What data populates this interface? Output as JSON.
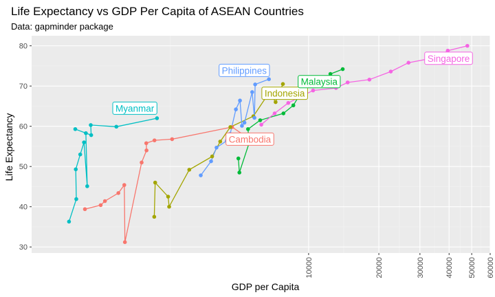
{
  "chart_data": {
    "type": "line",
    "title": "Life Expectancy vs GDP Per Capita of ASEAN Countries",
    "subtitle": "Data: gapminder package",
    "xlabel": "GDP per Capita",
    "ylabel": "Life Expectancy",
    "xscale": "log",
    "xlim": [
      650,
      60000
    ],
    "ylim": [
      28.5,
      82.5
    ],
    "xticks": [
      10000,
      20000,
      30000,
      40000,
      50000,
      60000
    ],
    "xtick_labels": [
      "10000",
      "20000",
      "30000",
      "40000",
      "50000",
      "60000"
    ],
    "yticks": [
      30,
      40,
      50,
      60,
      70,
      80
    ],
    "ytick_labels": [
      "30",
      "40",
      "50",
      "60",
      "70",
      "80"
    ],
    "grid": true,
    "legend": "none",
    "series": [
      {
        "name": "Cambodia",
        "color": "#F8766D",
        "points": [
          [
            1100,
            39.4
          ],
          [
            1285,
            40.4
          ],
          [
            1340,
            41.4
          ],
          [
            1530,
            43.4
          ],
          [
            1622,
            45.4
          ],
          [
            1632,
            31.2
          ],
          [
            1925,
            51
          ],
          [
            2020,
            54
          ],
          [
            2015,
            55.8
          ],
          [
            2185,
            56.5
          ],
          [
            2600,
            56.8
          ],
          [
            4700,
            59.8
          ],
          [
            5600,
            56.8
          ]
        ]
      },
      {
        "name": "Indonesia",
        "color": "#A3A500",
        "points": [
          [
            2180,
            37.5
          ],
          [
            2200,
            46
          ],
          [
            2500,
            42.5
          ],
          [
            2525,
            40
          ],
          [
            3080,
            49.2
          ],
          [
            3860,
            52.5
          ],
          [
            4180,
            56.2
          ],
          [
            4620,
            59.8
          ],
          [
            5800,
            62.5
          ],
          [
            6800,
            68.5
          ],
          [
            7220,
            66
          ],
          [
            7760,
            70.5
          ]
        ]
      },
      {
        "name": "Malaysia",
        "color": "#00BA38",
        "points": [
          [
            5000,
            52
          ],
          [
            5050,
            48.5
          ],
          [
            5550,
            55.7
          ],
          [
            5500,
            59.3
          ],
          [
            6200,
            61.5
          ],
          [
            7800,
            63.2
          ],
          [
            8600,
            65.2
          ],
          [
            9500,
            69.3
          ],
          [
            10200,
            70.7
          ],
          [
            12200,
            71.8
          ],
          [
            12400,
            73
          ],
          [
            14000,
            74.2
          ]
        ]
      },
      {
        "name": "Myanmar",
        "color": "#00BFC4",
        "points": [
          [
            940,
            36.3
          ],
          [
            1010,
            41.9
          ],
          [
            1005,
            49.3
          ],
          [
            1050,
            53
          ],
          [
            1090,
            56
          ],
          [
            1125,
            45.1
          ],
          [
            1110,
            58.3
          ],
          [
            1000,
            59.3
          ],
          [
            1170,
            57.8
          ],
          [
            1165,
            60.3
          ],
          [
            1500,
            59.9
          ],
          [
            2240,
            62
          ]
        ]
      },
      {
        "name": "Philippines",
        "color": "#619CFF",
        "points": [
          [
            3450,
            47.8
          ],
          [
            3820,
            51.3
          ],
          [
            4030,
            54.7
          ],
          [
            4460,
            56.4
          ],
          [
            4610,
            58.1
          ],
          [
            4880,
            64.2
          ],
          [
            5080,
            66.4
          ],
          [
            5180,
            60.1
          ],
          [
            5310,
            60.9
          ],
          [
            5730,
            68.5
          ],
          [
            5860,
            62.1
          ],
          [
            5900,
            70.4
          ],
          [
            6760,
            71.7
          ]
        ]
      },
      {
        "name": "Singapore",
        "color": "#F564E3",
        "points": [
          [
            6270,
            60.4
          ],
          [
            7150,
            63.2
          ],
          [
            8180,
            65.8
          ],
          [
            10450,
            68.9
          ],
          [
            13100,
            69.5
          ],
          [
            14700,
            70.9
          ],
          [
            18220,
            71.6
          ],
          [
            22500,
            73.6
          ],
          [
            26800,
            75.8
          ],
          [
            35800,
            77.2
          ],
          [
            39500,
            78.8
          ],
          [
            47900,
            80
          ]
        ]
      }
    ],
    "annotations": [
      {
        "text": "Cambodia",
        "series": "Cambodia",
        "x": 5600,
        "y": 56.8
      },
      {
        "text": "Indonesia",
        "series": "Indonesia",
        "x": 7900,
        "y": 68.2
      },
      {
        "text": "Malaysia",
        "series": "Malaysia",
        "x": 11100,
        "y": 71.1
      },
      {
        "text": "Myanmar",
        "series": "Myanmar",
        "x": 1800,
        "y": 64.5
      },
      {
        "text": "Philippines",
        "series": "Philippines",
        "x": 5300,
        "y": 73.9
      },
      {
        "text": "Singapore",
        "series": "Singapore",
        "x": 39800,
        "y": 76.9
      }
    ]
  }
}
